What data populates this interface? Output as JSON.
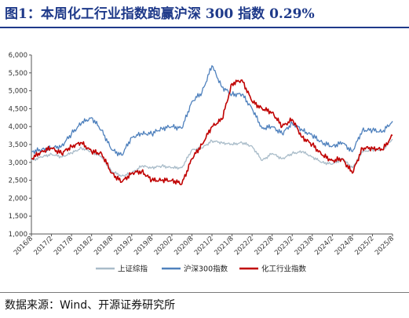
{
  "header": {
    "title": "图1：本周化工行业指数跑赢沪深 300 指数 0.29%"
  },
  "footer": {
    "source": "数据来源：Wind、开源证券研究所"
  },
  "colors": {
    "title": "#1f3a8a",
    "sse": "#a9bcc9",
    "csi300": "#4f81bd",
    "chemical": "#c00000"
  },
  "chart_data": {
    "type": "line",
    "title": "",
    "xlabel": "",
    "ylabel": "",
    "ylim": [
      1000,
      6000
    ],
    "yticks": [
      "1,000",
      "1,500",
      "2,000",
      "2,500",
      "3,000",
      "3,500",
      "4,000",
      "4,500",
      "5,000",
      "5,500",
      "6,000"
    ],
    "xticks": [
      "2016/8",
      "2017/2",
      "2017/8",
      "2018/2",
      "2018/8",
      "2019/2",
      "2019/8",
      "2020/2",
      "2020/8",
      "2021/2",
      "2021/8",
      "2022/2",
      "2022/8",
      "2023/2",
      "2023/8",
      "2024/2",
      "2024/8",
      "2025/2",
      "2025/8"
    ],
    "grid": false,
    "legend_position": "bottom",
    "x": [
      "2016/8",
      "2016/11",
      "2017/2",
      "2017/5",
      "2017/8",
      "2017/11",
      "2018/2",
      "2018/5",
      "2018/8",
      "2018/11",
      "2019/2",
      "2019/5",
      "2019/8",
      "2019/11",
      "2020/2",
      "2020/5",
      "2020/8",
      "2020/11",
      "2021/2",
      "2021/5",
      "2021/8",
      "2021/11",
      "2022/2",
      "2022/5",
      "2022/8",
      "2022/11",
      "2023/2",
      "2023/5",
      "2023/8",
      "2023/11",
      "2024/2",
      "2024/5",
      "2024/8",
      "2024/11",
      "2025/2",
      "2025/5",
      "2025/8"
    ],
    "series": [
      {
        "name": "上证综指",
        "color": "#a9bcc9",
        "values": [
          3050,
          3150,
          3230,
          3150,
          3260,
          3400,
          3300,
          3150,
          2750,
          2620,
          2700,
          2900,
          2850,
          2900,
          2850,
          2850,
          3350,
          3400,
          3600,
          3550,
          3500,
          3550,
          3450,
          3050,
          3250,
          3100,
          3250,
          3300,
          3150,
          3000,
          2950,
          3100,
          2850,
          3300,
          3350,
          3350,
          3650
        ]
      },
      {
        "name": "沪深300指数",
        "color": "#4f81bd",
        "values": [
          3300,
          3350,
          3400,
          3450,
          3800,
          4100,
          4250,
          3900,
          3350,
          3200,
          3700,
          3800,
          3800,
          3950,
          4000,
          3950,
          4700,
          4950,
          5700,
          5100,
          4900,
          4900,
          4500,
          3950,
          4000,
          3800,
          4100,
          3900,
          3750,
          3550,
          3450,
          3550,
          3300,
          3900,
          3900,
          3850,
          4150
        ]
      },
      {
        "name": "化工行业指数",
        "color": "#c00000",
        "values": [
          3100,
          3300,
          3400,
          3250,
          3450,
          3550,
          3300,
          3250,
          2700,
          2450,
          2700,
          2750,
          2500,
          2500,
          2500,
          2400,
          3100,
          3500,
          4000,
          4200,
          5200,
          5300,
          4700,
          4500,
          4400,
          4000,
          4200,
          3700,
          3500,
          3200,
          3050,
          3100,
          2700,
          3400,
          3400,
          3350,
          3750
        ]
      }
    ]
  }
}
